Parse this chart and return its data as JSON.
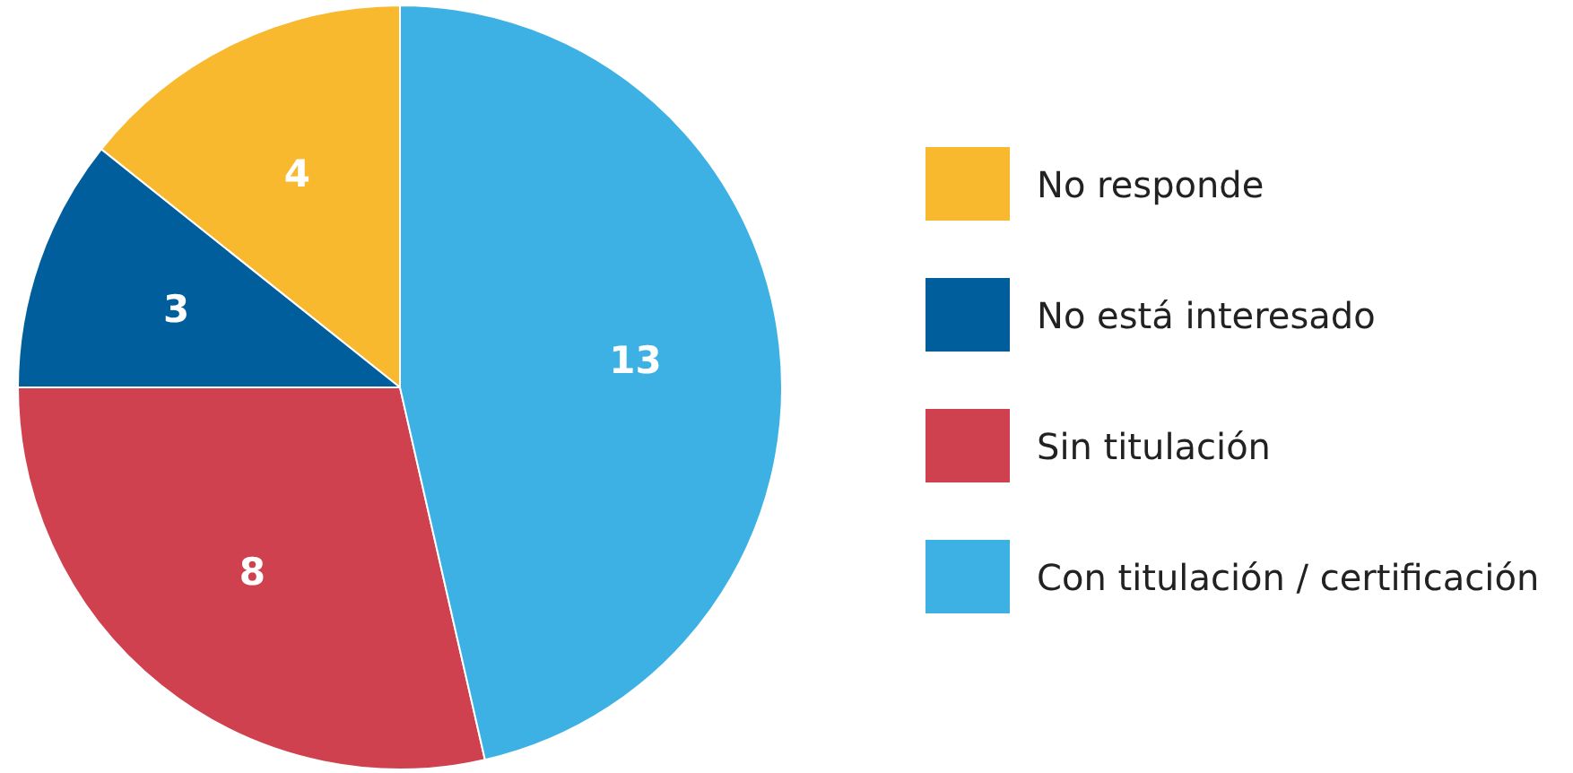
{
  "chart_data": {
    "type": "pie",
    "categories": [
      "No responde",
      "No está interesado",
      "Sin titulación",
      "Con titulación / certificación"
    ],
    "values": [
      4,
      3,
      8,
      13
    ],
    "colors": [
      "#f8b92f",
      "#005e9c",
      "#d0414f",
      "#3eb1e4"
    ],
    "data_labels": true,
    "legend": "right"
  }
}
